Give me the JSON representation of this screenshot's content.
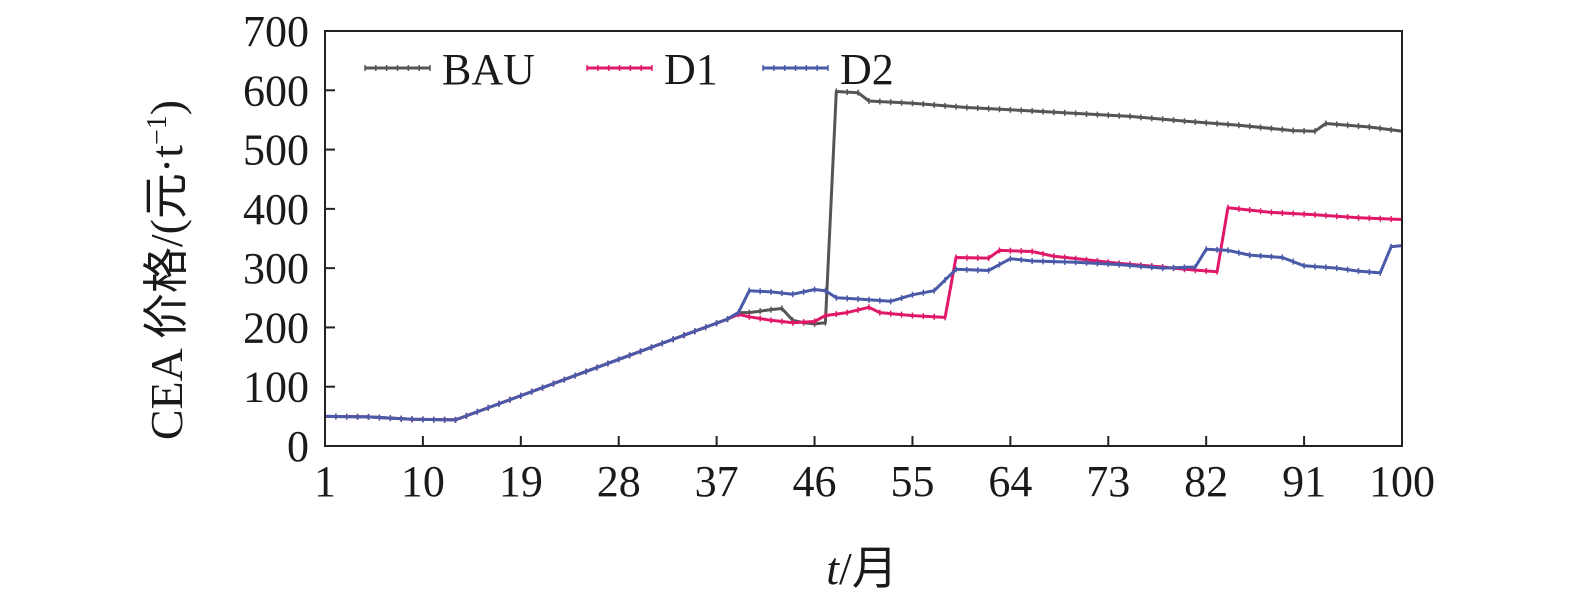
{
  "chart_data": {
    "type": "line",
    "xlabel_italic": "t",
    "xlabel_rest": "/月",
    "ylabel": "CEA 价格/(元·t",
    "ylabel_sup": "−1",
    "ylabel_close": ")",
    "xlim": [
      1,
      100
    ],
    "ylim": [
      0,
      700
    ],
    "x_ticks": [
      1,
      10,
      19,
      28,
      37,
      46,
      55,
      64,
      73,
      82,
      91,
      100
    ],
    "y_ticks": [
      0,
      100,
      200,
      300,
      400,
      500,
      600,
      700
    ],
    "legend_position": "top-left",
    "grid": false,
    "series": [
      {
        "name": "BAU",
        "color": "#555555",
        "points": [
          [
            1,
            50
          ],
          [
            5,
            49
          ],
          [
            9,
            45
          ],
          [
            13,
            44
          ],
          [
            38,
            214
          ],
          [
            39,
            225
          ],
          [
            40,
            225
          ],
          [
            42,
            230
          ],
          [
            43,
            232
          ],
          [
            44,
            212
          ],
          [
            45,
            208
          ],
          [
            46,
            206
          ],
          [
            47,
            208
          ],
          [
            48,
            598
          ],
          [
            50,
            596
          ],
          [
            51,
            582
          ],
          [
            55,
            578
          ],
          [
            60,
            571
          ],
          [
            65,
            566
          ],
          [
            70,
            561
          ],
          [
            75,
            556
          ],
          [
            80,
            548
          ],
          [
            85,
            541
          ],
          [
            90,
            532
          ],
          [
            92,
            531
          ],
          [
            93,
            544
          ],
          [
            97,
            538
          ],
          [
            100,
            531
          ]
        ]
      },
      {
        "name": "D1",
        "color": "#e0186a",
        "points": [
          [
            1,
            50
          ],
          [
            5,
            49
          ],
          [
            9,
            45
          ],
          [
            13,
            44
          ],
          [
            38,
            214
          ],
          [
            39,
            222
          ],
          [
            40,
            218
          ],
          [
            42,
            212
          ],
          [
            44,
            208
          ],
          [
            46,
            210
          ],
          [
            47,
            220
          ],
          [
            49,
            225
          ],
          [
            51,
            234
          ],
          [
            52,
            225
          ],
          [
            55,
            220
          ],
          [
            58,
            217
          ],
          [
            59,
            318
          ],
          [
            62,
            317
          ],
          [
            63,
            330
          ],
          [
            66,
            328
          ],
          [
            68,
            320
          ],
          [
            71,
            314
          ],
          [
            74,
            308
          ],
          [
            78,
            302
          ],
          [
            80,
            298
          ],
          [
            83,
            294
          ],
          [
            84,
            402
          ],
          [
            88,
            394
          ],
          [
            92,
            390
          ],
          [
            96,
            385
          ],
          [
            100,
            382
          ]
        ]
      },
      {
        "name": "D2",
        "color": "#4a5aa8",
        "points": [
          [
            1,
            50
          ],
          [
            5,
            49
          ],
          [
            9,
            45
          ],
          [
            13,
            44
          ],
          [
            38,
            214
          ],
          [
            39,
            225
          ],
          [
            40,
            262
          ],
          [
            42,
            260
          ],
          [
            44,
            256
          ],
          [
            46,
            264
          ],
          [
            47,
            262
          ],
          [
            48,
            250
          ],
          [
            50,
            248
          ],
          [
            53,
            244
          ],
          [
            55,
            255
          ],
          [
            57,
            262
          ],
          [
            59,
            298
          ],
          [
            62,
            296
          ],
          [
            64,
            316
          ],
          [
            66,
            312
          ],
          [
            70,
            310
          ],
          [
            74,
            306
          ],
          [
            78,
            300
          ],
          [
            81,
            302
          ],
          [
            82,
            332
          ],
          [
            84,
            330
          ],
          [
            86,
            322
          ],
          [
            89,
            318
          ],
          [
            91,
            304
          ],
          [
            94,
            300
          ],
          [
            96,
            295
          ],
          [
            98,
            292
          ],
          [
            99,
            336
          ],
          [
            100,
            338
          ]
        ]
      }
    ]
  }
}
